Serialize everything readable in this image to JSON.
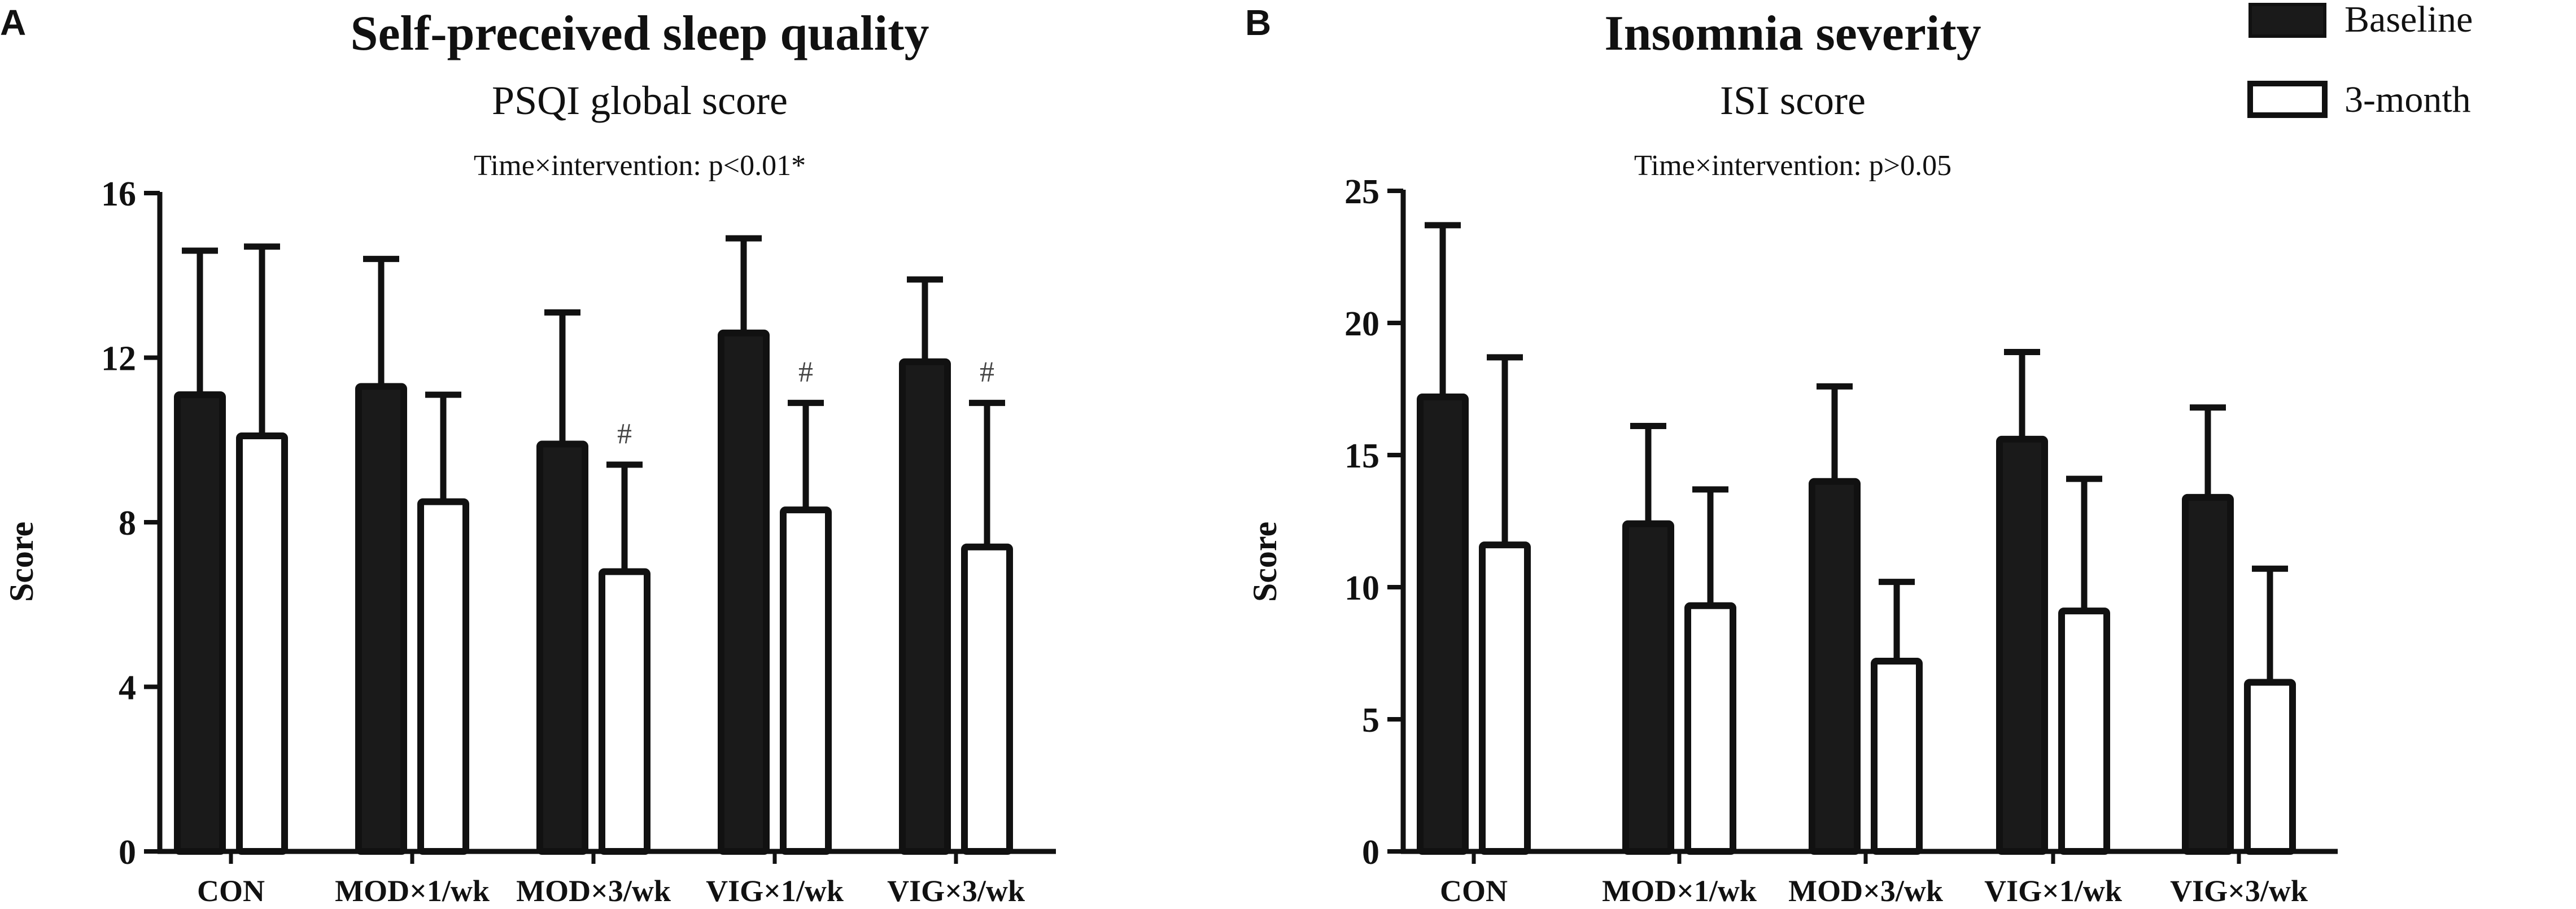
{
  "legend": {
    "items": [
      {
        "label": "Baseline",
        "fill": "#1a1a1a"
      },
      {
        "label": "3-month",
        "fill": "#ffffff"
      }
    ]
  },
  "chart_data": [
    {
      "type": "bar",
      "panel_label": "A",
      "title": "Self-preceived sleep quality",
      "subtitle": "PSQI global score",
      "annotation": "Time×intervention: p<0.01*",
      "ylabel": "Score",
      "xlabel": "",
      "ylim": [
        0,
        16
      ],
      "yticks": [
        "0",
        "4",
        "8",
        "12",
        "16"
      ],
      "categories": [
        "CON",
        "MOD×1/wk",
        "MOD×3/wk",
        "VIG×1/wk",
        "VIG×3/wk"
      ],
      "series": [
        {
          "name": "Baseline",
          "values": [
            11.1,
            11.3,
            9.9,
            12.6,
            11.9
          ],
          "errors": [
            3.5,
            3.1,
            3.2,
            2.3,
            2.0
          ],
          "marks": [
            "",
            "",
            "",
            "",
            ""
          ]
        },
        {
          "name": "3-month",
          "values": [
            10.1,
            8.5,
            6.8,
            8.3,
            7.4
          ],
          "errors": [
            4.6,
            2.6,
            2.6,
            2.6,
            3.5
          ],
          "marks": [
            "",
            "",
            "#",
            "#",
            "#"
          ]
        }
      ],
      "error_bars": "SD, upper only"
    },
    {
      "type": "bar",
      "panel_label": "B",
      "title": "Insomnia severity",
      "subtitle": "ISI score",
      "annotation": "Time×intervention: p>0.05",
      "ylabel": "Score",
      "xlabel": "",
      "ylim": [
        0,
        25
      ],
      "yticks": [
        "0",
        "5",
        "10",
        "15",
        "20",
        "25"
      ],
      "categories": [
        "CON",
        "MOD×1/wk",
        "MOD×3/wk",
        "VIG×1/wk",
        "VIG×3/wk"
      ],
      "series": [
        {
          "name": "Baseline",
          "values": [
            17.2,
            12.4,
            14.0,
            15.6,
            13.4
          ],
          "errors": [
            6.5,
            3.7,
            3.6,
            3.3,
            3.4
          ],
          "marks": [
            "",
            "",
            "",
            "",
            ""
          ]
        },
        {
          "name": "3-month",
          "values": [
            11.6,
            9.3,
            7.2,
            9.1,
            6.4
          ],
          "errors": [
            7.1,
            4.4,
            3.0,
            5.0,
            4.3
          ],
          "marks": [
            "",
            "",
            "",
            "",
            ""
          ]
        }
      ],
      "error_bars": "SD, upper only"
    }
  ]
}
